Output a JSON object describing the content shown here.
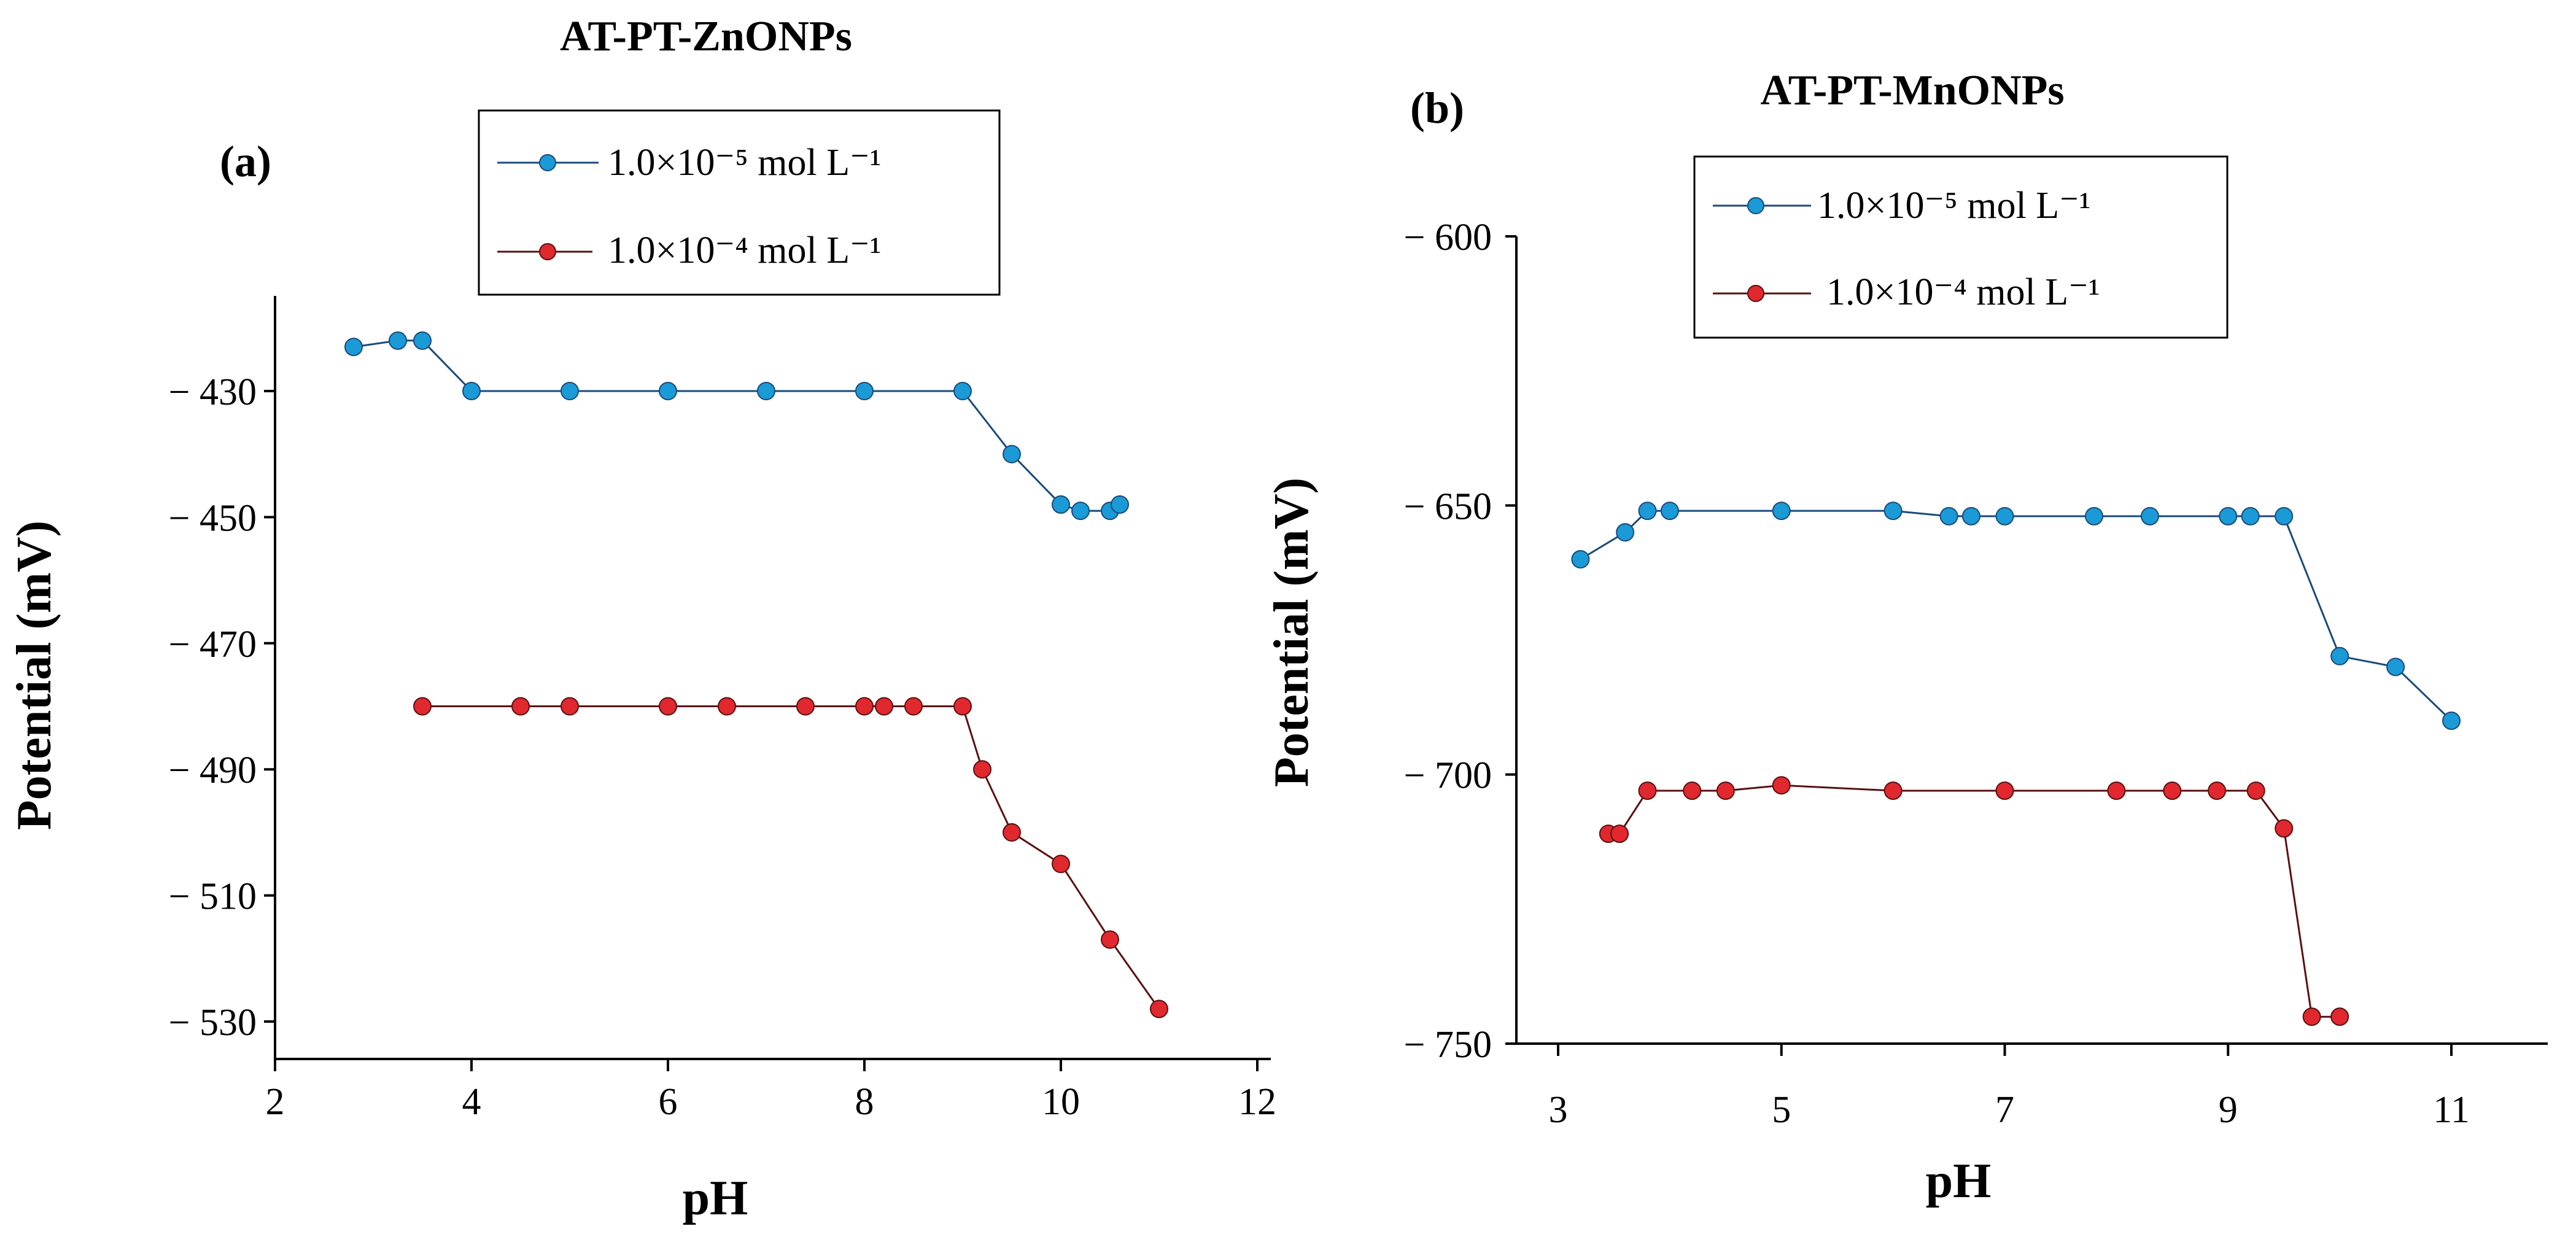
{
  "figure": {
    "background": "#ffffff"
  },
  "series_styles": {
    "blue": {
      "color": "#1a9ad6",
      "stroke": "#1a4a7a"
    },
    "red": {
      "color": "#e0282e",
      "stroke": "#5a1010"
    }
  },
  "chart_data": [
    {
      "id": "a",
      "type": "line",
      "panel_label": "(a)",
      "title": "AT-PT-ZnONPs",
      "xlabel": "pH",
      "ylabel": "Potential (mV)",
      "xlim": [
        2,
        12
      ],
      "ylim": [
        -536,
        -415
      ],
      "xticks": [
        2,
        4,
        6,
        8,
        10,
        12
      ],
      "xtick_labels": [
        "2",
        "4",
        "6",
        "8",
        "10",
        "12"
      ],
      "yticks": [
        -430,
        -450,
        -470,
        -490,
        -510,
        -530
      ],
      "ytick_labels": [
        "− 430",
        "− 450",
        "− 470",
        "− 490",
        "− 510",
        "− 530"
      ],
      "legend_position": "top-right",
      "series": [
        {
          "name": "1.0×10⁻⁵ mol L⁻¹",
          "style": "blue",
          "x": [
            2.8,
            3.25,
            3.5,
            4.0,
            5.0,
            6.0,
            7.0,
            8.0,
            9.0,
            9.5,
            10.0,
            10.2,
            10.5,
            10.6
          ],
          "y": [
            -423,
            -422,
            -422,
            -430,
            -430,
            -430,
            -430,
            -430,
            -430,
            -440,
            -448,
            -449,
            -449,
            -448
          ]
        },
        {
          "name": "1.0×10⁻⁴ mol L⁻¹",
          "style": "red",
          "x": [
            3.5,
            4.5,
            5.0,
            6.0,
            6.6,
            7.4,
            8.0,
            8.2,
            8.5,
            9.0,
            9.2,
            9.5,
            10.0,
            10.5,
            11.0
          ],
          "y": [
            -480,
            -480,
            -480,
            -480,
            -480,
            -480,
            -480,
            -480,
            -480,
            -480,
            -490,
            -500,
            -505,
            -517,
            -528
          ]
        }
      ]
    },
    {
      "id": "b",
      "type": "line",
      "panel_label": "(b)",
      "title": "AT-PT-MnONPs",
      "xlabel": "pH",
      "ylabel": "Potential (mV)",
      "xlim": [
        2.8,
        12.0
      ],
      "ylim": [
        -750,
        -600
      ],
      "xticks": [
        3,
        5,
        7,
        9,
        11
      ],
      "xtick_labels": [
        "3",
        "5",
        "7",
        "9",
        "11"
      ],
      "yticks": [
        -600,
        -650,
        -700,
        -750
      ],
      "ytick_labels": [
        "− 600",
        "− 650",
        "− 700",
        "− 750"
      ],
      "legend_position": "top-right",
      "series": [
        {
          "name": "1.0×10⁻⁵ mol L⁻¹",
          "style": "blue",
          "x": [
            3.2,
            3.6,
            3.8,
            4.0,
            5.0,
            6.0,
            6.5,
            6.7,
            7.0,
            7.8,
            8.3,
            9.0,
            9.2,
            9.5,
            10.0,
            10.5,
            11.0
          ],
          "y": [
            -660,
            -655,
            -651,
            -651,
            -651,
            -651,
            -652,
            -652,
            -652,
            -652,
            -652,
            -652,
            -652,
            -652,
            -678,
            -680,
            -690
          ]
        },
        {
          "name": "1.0×10⁻⁴ mol L⁻¹",
          "style": "red",
          "x": [
            3.45,
            3.55,
            3.8,
            4.2,
            4.5,
            5.0,
            6.0,
            7.0,
            8.0,
            8.5,
            8.9,
            9.25,
            9.5,
            9.75,
            10.0
          ],
          "y": [
            -711,
            -711,
            -703,
            -703,
            -703,
            -702,
            -703,
            -703,
            -703,
            -703,
            -703,
            -703,
            -710,
            -745,
            -745
          ]
        }
      ]
    }
  ]
}
